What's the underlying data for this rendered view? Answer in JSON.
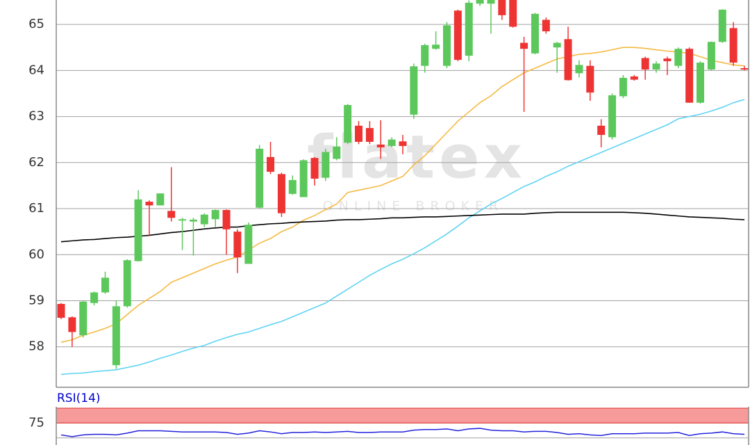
{
  "chart_data": [
    {
      "type": "candlestick",
      "watermark": "flatex",
      "watermark_sub": "ONLINE BROKER",
      "ylim": [
        57.12,
        65.53
      ],
      "yticks": [
        58,
        59,
        60,
        61,
        62,
        63,
        64,
        65
      ],
      "grid": true,
      "up_color": "#5cc85c",
      "down_color": "#ee3333",
      "open": [
        58.93,
        58.64,
        58.25,
        58.95,
        59.18,
        57.6,
        58.88,
        59.86,
        61.15,
        61.07,
        60.95,
        60.75,
        60.72,
        60.66,
        60.77,
        60.97,
        60.5,
        59.8,
        61.02,
        62.12,
        61.75,
        61.32,
        61.25,
        62.1,
        61.67,
        62.08,
        62.43,
        62.8,
        62.75,
        62.39,
        62.36,
        62.46,
        63.04,
        64.1,
        64.47,
        64.1,
        65.3,
        64.32,
        65.45,
        65.45,
        65.53,
        65.53,
        64.6,
        64.37,
        65.1,
        64.5,
        64.68,
        63.94,
        64.1,
        62.8,
        62.55,
        63.44,
        63.87,
        64.27,
        64.02,
        64.26,
        64.1,
        64.47,
        63.3,
        64.02,
        64.62,
        64.92,
        64.05
      ],
      "high": [
        58.95,
        58.66,
        59.0,
        59.2,
        59.63,
        59.0,
        59.9,
        61.4,
        61.18,
        61.33,
        61.9,
        60.8,
        60.8,
        60.9,
        60.98,
        60.98,
        60.55,
        60.7,
        62.38,
        62.45,
        61.78,
        61.72,
        62.07,
        62.12,
        62.3,
        62.55,
        63.27,
        62.9,
        62.9,
        62.92,
        62.55,
        62.6,
        64.15,
        64.58,
        64.85,
        65.05,
        65.32,
        65.52,
        65.53,
        65.53,
        65.53,
        65.53,
        64.73,
        65.25,
        65.15,
        64.62,
        64.95,
        64.22,
        64.22,
        62.94,
        63.5,
        63.9,
        63.9,
        64.3,
        64.2,
        64.3,
        64.5,
        64.5,
        64.2,
        64.63,
        65.33,
        65.05,
        64.1
      ],
      "low": [
        58.6,
        58.0,
        58.2,
        58.9,
        59.15,
        57.52,
        58.85,
        59.85,
        60.4,
        61.07,
        60.72,
        60.1,
        59.98,
        60.6,
        60.6,
        60.0,
        59.6,
        59.8,
        61.0,
        61.75,
        60.82,
        61.3,
        61.25,
        61.5,
        61.6,
        62.05,
        62.4,
        62.4,
        62.4,
        62.08,
        62.33,
        62.18,
        62.95,
        63.95,
        64.45,
        64.05,
        64.2,
        64.2,
        65.4,
        64.8,
        65.1,
        64.93,
        63.1,
        64.35,
        64.8,
        63.95,
        63.78,
        63.85,
        63.34,
        62.33,
        62.5,
        63.4,
        63.78,
        63.8,
        63.95,
        63.9,
        64.05,
        63.3,
        63.28,
        64.0,
        64.6,
        64.1,
        64.0
      ],
      "close": [
        58.63,
        58.32,
        58.98,
        59.18,
        59.5,
        58.88,
        59.88,
        61.2,
        61.07,
        61.33,
        60.8,
        60.77,
        60.76,
        60.87,
        60.97,
        60.55,
        59.94,
        60.65,
        62.3,
        61.8,
        60.9,
        61.62,
        62.05,
        61.65,
        62.23,
        62.35,
        63.25,
        62.45,
        62.45,
        62.33,
        62.5,
        62.36,
        64.09,
        64.55,
        64.56,
        64.98,
        64.23,
        65.47,
        65.53,
        65.53,
        65.2,
        64.95,
        64.47,
        65.23,
        64.85,
        64.6,
        63.79,
        64.12,
        63.52,
        62.6,
        63.46,
        63.84,
        63.8,
        64.02,
        64.15,
        64.2,
        64.47,
        63.3,
        64.17,
        64.62,
        65.32,
        64.17,
        64.02
      ],
      "series": [
        {
          "color": "#f5b942",
          "values": [
            58.1,
            58.15,
            58.25,
            58.32,
            58.4,
            58.5,
            58.7,
            58.9,
            59.05,
            59.2,
            59.4,
            59.5,
            59.6,
            59.7,
            59.8,
            59.88,
            59.95,
            60.1,
            60.25,
            60.35,
            60.5,
            60.6,
            60.75,
            60.85,
            60.98,
            61.1,
            61.35,
            61.4,
            61.45,
            61.5,
            61.6,
            61.7,
            61.95,
            62.15,
            62.4,
            62.65,
            62.9,
            63.1,
            63.3,
            63.45,
            63.65,
            63.8,
            63.95,
            64.05,
            64.15,
            64.25,
            64.3,
            64.35,
            64.37,
            64.4,
            64.45,
            64.5,
            64.5,
            64.48,
            64.45,
            64.42,
            64.4,
            64.37,
            64.3,
            64.22,
            64.17,
            64.12,
            64.1
          ]
        },
        {
          "color": "#5fd3f3",
          "values": [
            57.4,
            57.42,
            57.43,
            57.46,
            57.48,
            57.5,
            57.55,
            57.6,
            57.67,
            57.75,
            57.82,
            57.9,
            57.97,
            58.03,
            58.12,
            58.2,
            58.27,
            58.32,
            58.4,
            58.48,
            58.55,
            58.65,
            58.75,
            58.85,
            58.95,
            59.1,
            59.25,
            59.4,
            59.55,
            59.68,
            59.8,
            59.9,
            60.02,
            60.15,
            60.3,
            60.45,
            60.62,
            60.8,
            60.95,
            61.1,
            61.22,
            61.35,
            61.48,
            61.58,
            61.7,
            61.8,
            61.92,
            62.02,
            62.12,
            62.22,
            62.32,
            62.42,
            62.52,
            62.62,
            62.72,
            62.82,
            62.95,
            63.0,
            63.05,
            63.12,
            63.2,
            63.3,
            63.37
          ]
        },
        {
          "color": "#000000",
          "values": [
            60.28,
            60.3,
            60.32,
            60.33,
            60.35,
            60.37,
            60.38,
            60.4,
            60.42,
            60.45,
            60.48,
            60.5,
            60.53,
            60.56,
            60.58,
            60.6,
            60.6,
            60.63,
            60.65,
            60.67,
            60.68,
            60.7,
            60.71,
            60.72,
            60.73,
            60.75,
            60.76,
            60.76,
            60.77,
            60.78,
            60.8,
            60.8,
            60.81,
            60.82,
            60.82,
            60.83,
            60.84,
            60.85,
            60.86,
            60.87,
            60.88,
            60.88,
            60.88,
            60.9,
            60.91,
            60.92,
            60.92,
            60.92,
            60.92,
            60.92,
            60.92,
            60.92,
            60.91,
            60.9,
            60.88,
            60.86,
            60.84,
            60.82,
            60.81,
            60.8,
            60.79,
            60.77,
            60.76
          ]
        }
      ]
    },
    {
      "type": "line",
      "title": "RSI(14)",
      "title_color": "#0000cc",
      "ylim": [
        38,
        100
      ],
      "yticks": [
        75
      ],
      "grid_lines": [
        50
      ],
      "band": [
        75,
        100
      ],
      "band_color": "#f69a9a",
      "series": [
        {
          "color": "#2222dd",
          "values": [
            55,
            52,
            55,
            56,
            56,
            55,
            58,
            62,
            62,
            62,
            61,
            60,
            60,
            60,
            60,
            59,
            56,
            58,
            62,
            60,
            57,
            59,
            59,
            60,
            59,
            60,
            61,
            59,
            59,
            60,
            60,
            60,
            63,
            64,
            64,
            65,
            62,
            65,
            66,
            63,
            62,
            62,
            60,
            61,
            61,
            59,
            56,
            57,
            55,
            54,
            57,
            57,
            57,
            58,
            58,
            58,
            59,
            54,
            57,
            58,
            60,
            57,
            56
          ]
        }
      ]
    }
  ]
}
